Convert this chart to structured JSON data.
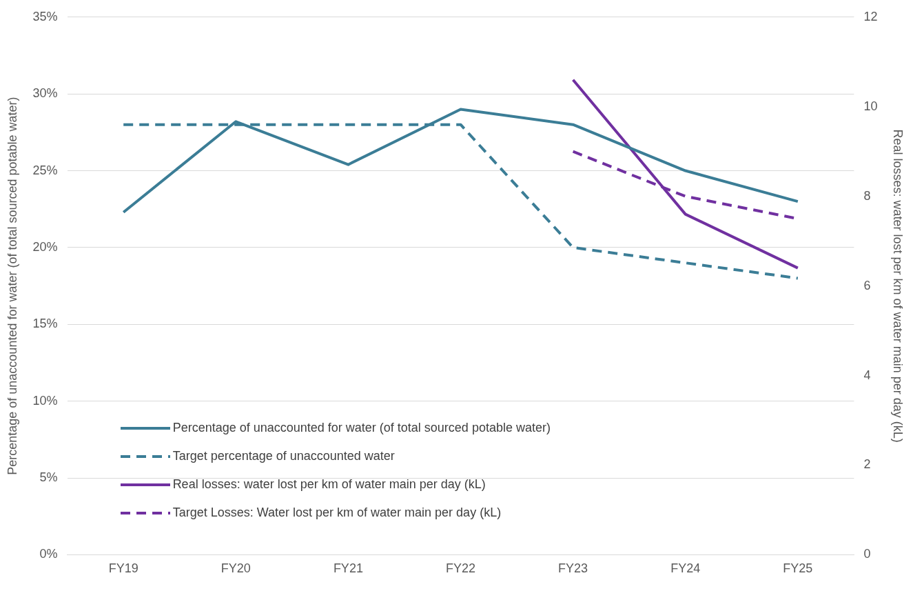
{
  "chart_data": {
    "type": "line",
    "ylabel": "Percentage of unaccounted for water (of total sourced potable water)",
    "y2label": "Real losses: water lost per km of water main per day (kL)",
    "categories": [
      "FY19",
      "FY20",
      "FY21",
      "FY22",
      "FY23",
      "FY24",
      "FY25"
    ],
    "series": [
      {
        "name": "Percentage of unaccounted for water (of total sourced potable water)",
        "color": "#3b7d96",
        "values": [
          22.3,
          28.2,
          25.4,
          29.0,
          28.0,
          25.0,
          23.0
        ]
      },
      {
        "name": "Target percentage of unaccounted water",
        "color": "#3b7d96",
        "line_style": "dashed",
        "values": [
          28.0,
          28.0,
          28.0,
          28.0,
          20.0,
          19.0,
          18.0
        ]
      },
      {
        "name": "Real losses: water lost per km of water main per day (kL)",
        "color": "#7030a0",
        "axis": "y2",
        "values": [
          null,
          null,
          null,
          null,
          10.6,
          7.6,
          6.4
        ]
      },
      {
        "name": "Target Losses: Water lost per km of water main per day (kL)",
        "color": "#7030a0",
        "axis": "y2",
        "line_style": "dashed",
        "values": [
          null,
          null,
          null,
          null,
          9.0,
          8.0,
          7.5
        ]
      }
    ],
    "ylim": [
      0,
      35
    ],
    "yticks": [
      {
        "value": 0,
        "label": "0%"
      },
      {
        "value": 5,
        "label": "5%"
      },
      {
        "value": 10,
        "label": "10%"
      },
      {
        "value": 15,
        "label": "15%"
      },
      {
        "value": 20,
        "label": "20%"
      },
      {
        "value": 25,
        "label": "25%"
      },
      {
        "value": 30,
        "label": "30%"
      },
      {
        "value": 35,
        "label": "35%"
      }
    ],
    "y2lim": [
      0,
      12
    ],
    "y2ticks": [
      0,
      2,
      4,
      6,
      8,
      10,
      12
    ],
    "grid": "y",
    "legend": "bottom left",
    "marker": "none"
  }
}
